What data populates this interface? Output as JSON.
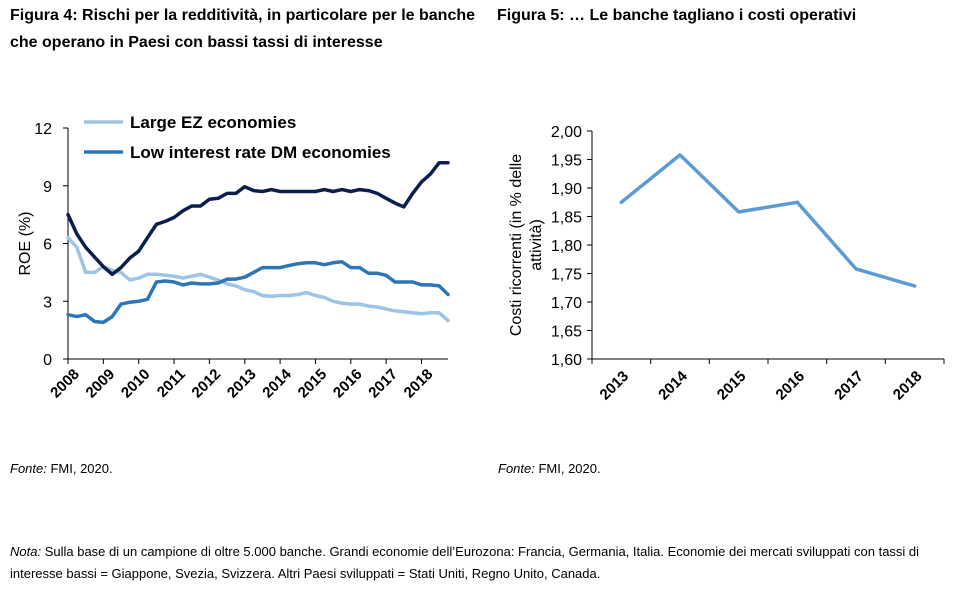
{
  "figure4": {
    "title": "Figura 4: Rischi per la redditività, in particolare per le banche che operano in Paesi con bassi tassi di interesse",
    "source_label": "Fonte:",
    "source_text": " FMI, 2020."
  },
  "figure5": {
    "title": "Figura 5: … Le banche tagliano i costi operativi",
    "source_label": "Fonte:",
    "source_text": " FMI, 2020."
  },
  "note": {
    "label": "Nota:",
    "text": " Sulla base di un campione di oltre 5.000 banche. Grandi economie dell’Eurozona: Francia, Germania, Italia. Economie dei mercati sviluppati con tassi di interesse bassi = Giappone, Svezia, Svizzera. Altri Paesi sviluppati = Stati Uniti, Regno Unito, Canada."
  },
  "colors": {
    "large_ez": "#9dc3e6",
    "low_rate": "#2e75b6",
    "other_dev": "#0b1f4e",
    "fig5_line": "#5b9bd5",
    "axis": "#000000"
  },
  "chart_data": [
    {
      "type": "line",
      "ylabel": "ROE (%)",
      "xlabel": "",
      "ylim": [
        0,
        12
      ],
      "yticks": [
        0,
        3,
        6,
        9,
        12
      ],
      "xticks": [
        "2008",
        "2009",
        "2010",
        "2011",
        "2012",
        "2013",
        "2014",
        "2015",
        "2016",
        "2017",
        "2018"
      ],
      "xlim": [
        2008,
        2018.75
      ],
      "legend_position": "top-left",
      "series": [
        {
          "name": "Large EZ economies",
          "color_key": "large_ez",
          "x": [
            2008,
            2008.25,
            2008.5,
            2008.75,
            2009,
            2009.25,
            2009.5,
            2009.75,
            2010,
            2010.25,
            2010.5,
            2010.75,
            2011,
            2011.25,
            2011.5,
            2011.75,
            2012,
            2012.25,
            2012.5,
            2012.75,
            2013,
            2013.25,
            2013.5,
            2013.75,
            2014,
            2014.25,
            2014.5,
            2014.75,
            2015,
            2015.25,
            2015.5,
            2015.75,
            2016,
            2016.25,
            2016.5,
            2016.75,
            2017,
            2017.25,
            2017.5,
            2017.75,
            2018,
            2018.25,
            2018.5,
            2018.75
          ],
          "values": [
            6.3,
            5.8,
            4.5,
            4.5,
            4.8,
            4.6,
            4.5,
            4.1,
            4.2,
            4.4,
            4.4,
            4.35,
            4.3,
            4.2,
            4.3,
            4.4,
            4.25,
            4.1,
            3.9,
            3.8,
            3.6,
            3.5,
            3.3,
            3.25,
            3.3,
            3.3,
            3.35,
            3.45,
            3.3,
            3.2,
            3.0,
            2.9,
            2.85,
            2.85,
            2.75,
            2.7,
            2.6,
            2.5,
            2.45,
            2.4,
            2.35,
            2.4,
            2.4,
            2.0
          ]
        },
        {
          "name": "Low interest rate DM economies",
          "color_key": "low_rate",
          "x": [
            2008,
            2008.25,
            2008.5,
            2008.75,
            2009,
            2009.25,
            2009.5,
            2009.75,
            2010,
            2010.25,
            2010.5,
            2010.75,
            2011,
            2011.25,
            2011.5,
            2011.75,
            2012,
            2012.25,
            2012.5,
            2012.75,
            2013,
            2013.25,
            2013.5,
            2013.75,
            2014,
            2014.25,
            2014.5,
            2014.75,
            2015,
            2015.25,
            2015.5,
            2015.75,
            2016,
            2016.25,
            2016.5,
            2016.75,
            2017,
            2017.25,
            2017.5,
            2017.75,
            2018,
            2018.25,
            2018.5,
            2018.75
          ],
          "values": [
            2.3,
            2.2,
            2.3,
            1.95,
            1.9,
            2.2,
            2.85,
            2.95,
            3.0,
            3.1,
            4.0,
            4.05,
            4.0,
            3.85,
            3.95,
            3.9,
            3.9,
            3.95,
            4.15,
            4.15,
            4.25,
            4.5,
            4.75,
            4.75,
            4.75,
            4.85,
            4.95,
            5.0,
            5.0,
            4.9,
            5.0,
            5.05,
            4.75,
            4.75,
            4.45,
            4.45,
            4.35,
            4.0,
            4.0,
            4.0,
            3.85,
            3.85,
            3.8,
            3.35
          ]
        },
        {
          "name": "",
          "color_key": "other_dev",
          "x": [
            2008,
            2008.25,
            2008.5,
            2008.75,
            2009,
            2009.25,
            2009.5,
            2009.75,
            2010,
            2010.25,
            2010.5,
            2010.75,
            2011,
            2011.25,
            2011.5,
            2011.75,
            2012,
            2012.25,
            2012.5,
            2012.75,
            2013,
            2013.25,
            2013.5,
            2013.75,
            2014,
            2014.25,
            2014.5,
            2014.75,
            2015,
            2015.25,
            2015.5,
            2015.75,
            2016,
            2016.25,
            2016.5,
            2016.75,
            2017,
            2017.25,
            2017.5,
            2017.75,
            2018,
            2018.25,
            2018.5,
            2018.75
          ],
          "values": [
            7.5,
            6.5,
            5.8,
            5.3,
            4.8,
            4.4,
            4.75,
            5.25,
            5.6,
            6.3,
            7.0,
            7.15,
            7.35,
            7.7,
            7.95,
            7.95,
            8.3,
            8.35,
            8.6,
            8.6,
            8.95,
            8.75,
            8.7,
            8.8,
            8.7,
            8.7,
            8.7,
            8.7,
            8.7,
            8.8,
            8.7,
            8.8,
            8.7,
            8.8,
            8.75,
            8.6,
            8.35,
            8.1,
            7.9,
            8.6,
            9.2,
            9.6,
            10.2,
            10.2
          ]
        }
      ]
    },
    {
      "type": "line",
      "ylabel": "Costi ricorrenti (in % delle attività)",
      "xlabel": "",
      "ylim": [
        1.6,
        2.0
      ],
      "yticks": [
        "1,60",
        "1,65",
        "1,70",
        "1,75",
        "1,80",
        "1,85",
        "1,90",
        "1,95",
        "2,00"
      ],
      "categories": [
        "2013",
        "2014",
        "2015",
        "2016",
        "2017",
        "2018"
      ],
      "series": [
        {
          "name": "",
          "color_key": "fig5_line",
          "values": [
            1.875,
            1.958,
            1.858,
            1.875,
            1.758,
            1.728
          ]
        }
      ]
    }
  ]
}
